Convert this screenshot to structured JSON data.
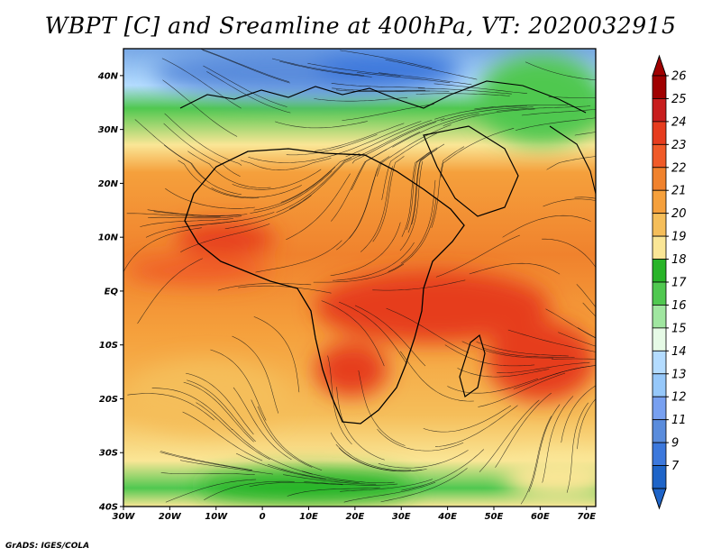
{
  "title": "WBPT [C] and Sreamline at 400hPa, VT: 2020032915",
  "credit": "GrADS: IGES/COLA",
  "map": {
    "lat_labels": [
      "40N",
      "30N",
      "20N",
      "10N",
      "EQ",
      "10S",
      "20S",
      "30S",
      "40S"
    ],
    "lon_labels": [
      "30W",
      "20W",
      "10W",
      "0",
      "10E",
      "20E",
      "30E",
      "40E",
      "50E",
      "60E",
      "70E"
    ],
    "lon_range": [
      -30,
      72
    ],
    "lat_range": [
      -40,
      45
    ]
  },
  "colorbar": {
    "levels": [
      "26",
      "25",
      "24",
      "23",
      "22",
      "21",
      "20",
      "19",
      "18",
      "17",
      "16",
      "15",
      "14",
      "13",
      "12",
      "11",
      "9",
      "7"
    ],
    "colors": [
      "#a00000",
      "#c81e1e",
      "#e63c1e",
      "#f05a28",
      "#f0822d",
      "#f5a03c",
      "#f5be5a",
      "#fae696",
      "#28b428",
      "#50c850",
      "#a0e6a0",
      "#e6fae6",
      "#b4dcff",
      "#96c8fa",
      "#78a0f0",
      "#5a8cdc",
      "#3c78dc",
      "#1e64c8"
    ]
  }
}
